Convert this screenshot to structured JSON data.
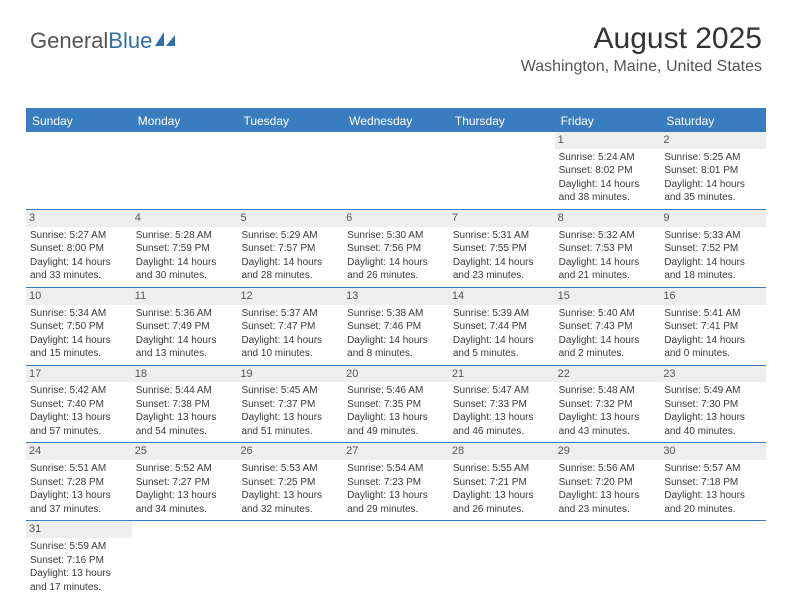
{
  "logo": {
    "text1": "General",
    "text2": "Blue"
  },
  "header": {
    "title": "August 2025",
    "location": "Washington, Maine, United States"
  },
  "colors": {
    "header_bar": "#3a7dbf",
    "row_divider": "#3a7dbf",
    "daynum_bg": "#eeeeee",
    "text": "#333333",
    "logo_blue": "#2f6ea8"
  },
  "weekdays": [
    "Sunday",
    "Monday",
    "Tuesday",
    "Wednesday",
    "Thursday",
    "Friday",
    "Saturday"
  ],
  "weeks": [
    [
      {
        "n": "",
        "sr": "",
        "ss": "",
        "dl": ""
      },
      {
        "n": "",
        "sr": "",
        "ss": "",
        "dl": ""
      },
      {
        "n": "",
        "sr": "",
        "ss": "",
        "dl": ""
      },
      {
        "n": "",
        "sr": "",
        "ss": "",
        "dl": ""
      },
      {
        "n": "",
        "sr": "",
        "ss": "",
        "dl": ""
      },
      {
        "n": "1",
        "sr": "Sunrise: 5:24 AM",
        "ss": "Sunset: 8:02 PM",
        "dl": "Daylight: 14 hours and 38 minutes."
      },
      {
        "n": "2",
        "sr": "Sunrise: 5:25 AM",
        "ss": "Sunset: 8:01 PM",
        "dl": "Daylight: 14 hours and 35 minutes."
      }
    ],
    [
      {
        "n": "3",
        "sr": "Sunrise: 5:27 AM",
        "ss": "Sunset: 8:00 PM",
        "dl": "Daylight: 14 hours and 33 minutes."
      },
      {
        "n": "4",
        "sr": "Sunrise: 5:28 AM",
        "ss": "Sunset: 7:59 PM",
        "dl": "Daylight: 14 hours and 30 minutes."
      },
      {
        "n": "5",
        "sr": "Sunrise: 5:29 AM",
        "ss": "Sunset: 7:57 PM",
        "dl": "Daylight: 14 hours and 28 minutes."
      },
      {
        "n": "6",
        "sr": "Sunrise: 5:30 AM",
        "ss": "Sunset: 7:56 PM",
        "dl": "Daylight: 14 hours and 26 minutes."
      },
      {
        "n": "7",
        "sr": "Sunrise: 5:31 AM",
        "ss": "Sunset: 7:55 PM",
        "dl": "Daylight: 14 hours and 23 minutes."
      },
      {
        "n": "8",
        "sr": "Sunrise: 5:32 AM",
        "ss": "Sunset: 7:53 PM",
        "dl": "Daylight: 14 hours and 21 minutes."
      },
      {
        "n": "9",
        "sr": "Sunrise: 5:33 AM",
        "ss": "Sunset: 7:52 PM",
        "dl": "Daylight: 14 hours and 18 minutes."
      }
    ],
    [
      {
        "n": "10",
        "sr": "Sunrise: 5:34 AM",
        "ss": "Sunset: 7:50 PM",
        "dl": "Daylight: 14 hours and 15 minutes."
      },
      {
        "n": "11",
        "sr": "Sunrise: 5:36 AM",
        "ss": "Sunset: 7:49 PM",
        "dl": "Daylight: 14 hours and 13 minutes."
      },
      {
        "n": "12",
        "sr": "Sunrise: 5:37 AM",
        "ss": "Sunset: 7:47 PM",
        "dl": "Daylight: 14 hours and 10 minutes."
      },
      {
        "n": "13",
        "sr": "Sunrise: 5:38 AM",
        "ss": "Sunset: 7:46 PM",
        "dl": "Daylight: 14 hours and 8 minutes."
      },
      {
        "n": "14",
        "sr": "Sunrise: 5:39 AM",
        "ss": "Sunset: 7:44 PM",
        "dl": "Daylight: 14 hours and 5 minutes."
      },
      {
        "n": "15",
        "sr": "Sunrise: 5:40 AM",
        "ss": "Sunset: 7:43 PM",
        "dl": "Daylight: 14 hours and 2 minutes."
      },
      {
        "n": "16",
        "sr": "Sunrise: 5:41 AM",
        "ss": "Sunset: 7:41 PM",
        "dl": "Daylight: 14 hours and 0 minutes."
      }
    ],
    [
      {
        "n": "17",
        "sr": "Sunrise: 5:42 AM",
        "ss": "Sunset: 7:40 PM",
        "dl": "Daylight: 13 hours and 57 minutes."
      },
      {
        "n": "18",
        "sr": "Sunrise: 5:44 AM",
        "ss": "Sunset: 7:38 PM",
        "dl": "Daylight: 13 hours and 54 minutes."
      },
      {
        "n": "19",
        "sr": "Sunrise: 5:45 AM",
        "ss": "Sunset: 7:37 PM",
        "dl": "Daylight: 13 hours and 51 minutes."
      },
      {
        "n": "20",
        "sr": "Sunrise: 5:46 AM",
        "ss": "Sunset: 7:35 PM",
        "dl": "Daylight: 13 hours and 49 minutes."
      },
      {
        "n": "21",
        "sr": "Sunrise: 5:47 AM",
        "ss": "Sunset: 7:33 PM",
        "dl": "Daylight: 13 hours and 46 minutes."
      },
      {
        "n": "22",
        "sr": "Sunrise: 5:48 AM",
        "ss": "Sunset: 7:32 PM",
        "dl": "Daylight: 13 hours and 43 minutes."
      },
      {
        "n": "23",
        "sr": "Sunrise: 5:49 AM",
        "ss": "Sunset: 7:30 PM",
        "dl": "Daylight: 13 hours and 40 minutes."
      }
    ],
    [
      {
        "n": "24",
        "sr": "Sunrise: 5:51 AM",
        "ss": "Sunset: 7:28 PM",
        "dl": "Daylight: 13 hours and 37 minutes."
      },
      {
        "n": "25",
        "sr": "Sunrise: 5:52 AM",
        "ss": "Sunset: 7:27 PM",
        "dl": "Daylight: 13 hours and 34 minutes."
      },
      {
        "n": "26",
        "sr": "Sunrise: 5:53 AM",
        "ss": "Sunset: 7:25 PM",
        "dl": "Daylight: 13 hours and 32 minutes."
      },
      {
        "n": "27",
        "sr": "Sunrise: 5:54 AM",
        "ss": "Sunset: 7:23 PM",
        "dl": "Daylight: 13 hours and 29 minutes."
      },
      {
        "n": "28",
        "sr": "Sunrise: 5:55 AM",
        "ss": "Sunset: 7:21 PM",
        "dl": "Daylight: 13 hours and 26 minutes."
      },
      {
        "n": "29",
        "sr": "Sunrise: 5:56 AM",
        "ss": "Sunset: 7:20 PM",
        "dl": "Daylight: 13 hours and 23 minutes."
      },
      {
        "n": "30",
        "sr": "Sunrise: 5:57 AM",
        "ss": "Sunset: 7:18 PM",
        "dl": "Daylight: 13 hours and 20 minutes."
      }
    ],
    [
      {
        "n": "31",
        "sr": "Sunrise: 5:59 AM",
        "ss": "Sunset: 7:16 PM",
        "dl": "Daylight: 13 hours and 17 minutes."
      },
      {
        "n": "",
        "sr": "",
        "ss": "",
        "dl": ""
      },
      {
        "n": "",
        "sr": "",
        "ss": "",
        "dl": ""
      },
      {
        "n": "",
        "sr": "",
        "ss": "",
        "dl": ""
      },
      {
        "n": "",
        "sr": "",
        "ss": "",
        "dl": ""
      },
      {
        "n": "",
        "sr": "",
        "ss": "",
        "dl": ""
      },
      {
        "n": "",
        "sr": "",
        "ss": "",
        "dl": ""
      }
    ]
  ]
}
